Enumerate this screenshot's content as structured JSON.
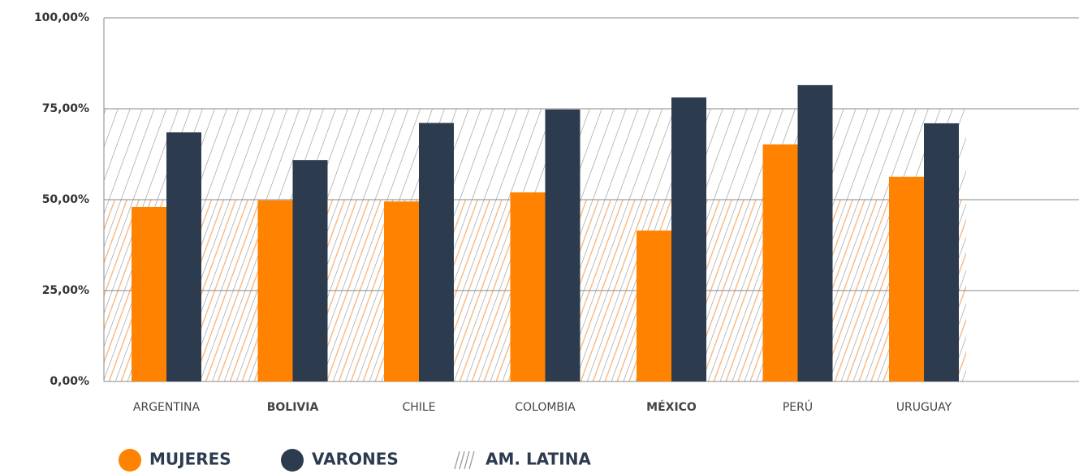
{
  "chart_data": {
    "type": "bar",
    "categories": [
      "ARGENTINA",
      "BOLIVIA",
      "CHILE",
      "COLOMBIA",
      "MÉXICO",
      "PERÚ",
      "URUGUAY"
    ],
    "bold_category_indices": [
      1,
      4
    ],
    "series": [
      {
        "name": "MUJERES",
        "color": "#ff8200",
        "values": [
          48,
          49.8,
          49.5,
          52,
          41.5,
          65.2,
          56.3
        ]
      },
      {
        "name": "VARONES",
        "color": "#2c3b4e",
        "values": [
          68.5,
          60.9,
          71.1,
          74.8,
          78.1,
          81.5,
          71
        ]
      }
    ],
    "reference": {
      "name": "AM. LATINA",
      "series_values": [
        50,
        75
      ],
      "colors": [
        "#f5b27a",
        "#9a9a9a"
      ]
    },
    "ylim": [
      0,
      100
    ],
    "yticks": [
      {
        "value": 0,
        "label": "0,00%"
      },
      {
        "value": 25,
        "label": "25,00%"
      },
      {
        "value": 50,
        "label": "50,00%"
      },
      {
        "value": 75,
        "label": "75,00%"
      },
      {
        "value": 100,
        "label": "100,00%"
      }
    ],
    "grid": true
  }
}
